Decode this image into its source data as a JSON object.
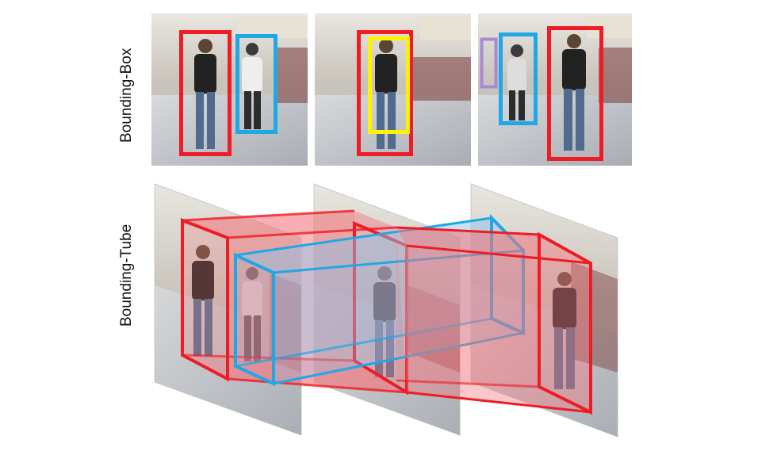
{
  "labels": {
    "bounding_box": "Bounding-Box",
    "bounding_tube": "Bounding-Tube"
  },
  "colors": {
    "red": "#ee1c25",
    "blue": "#1fa7e6",
    "yellow": "#fff200",
    "purple": "#a889d6",
    "tube_red_fill": "#f3767c",
    "tube_blue_fill": "#8ec3ea"
  },
  "frames_row1": [
    {
      "boxes": [
        "red",
        "blue"
      ]
    },
    {
      "boxes": [
        "red",
        "yellow"
      ]
    },
    {
      "boxes": [
        "purple",
        "blue",
        "red"
      ]
    }
  ]
}
